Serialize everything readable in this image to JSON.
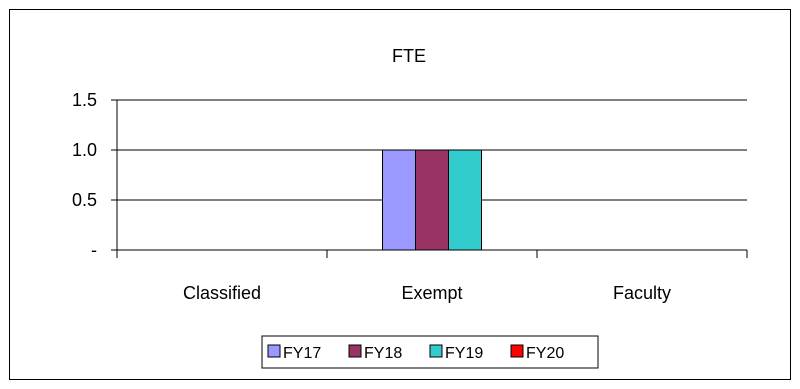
{
  "chart_data": {
    "type": "bar",
    "title": "FTE",
    "xlabel": "",
    "ylabel": "",
    "categories": [
      "Classified",
      "Exempt",
      "Faculty"
    ],
    "series": [
      {
        "name": "FY17",
        "color": "#9999FF",
        "values": [
          0,
          1.0,
          0
        ]
      },
      {
        "name": "FY18",
        "color": "#993366",
        "values": [
          0,
          1.0,
          0
        ]
      },
      {
        "name": "FY19",
        "color": "#33CCCC",
        "values": [
          0,
          1.0,
          0
        ]
      },
      {
        "name": "FY20",
        "color": "#FF0000",
        "values": [
          0,
          0,
          0
        ]
      }
    ],
    "ylim": [
      0,
      1.5
    ],
    "yticks": [
      {
        "value": 0,
        "label": "-"
      },
      {
        "value": 0.5,
        "label": "0.5"
      },
      {
        "value": 1.0,
        "label": "1.0"
      },
      {
        "value": 1.5,
        "label": "1.5"
      }
    ],
    "grid": true,
    "legend_position": "bottom"
  }
}
